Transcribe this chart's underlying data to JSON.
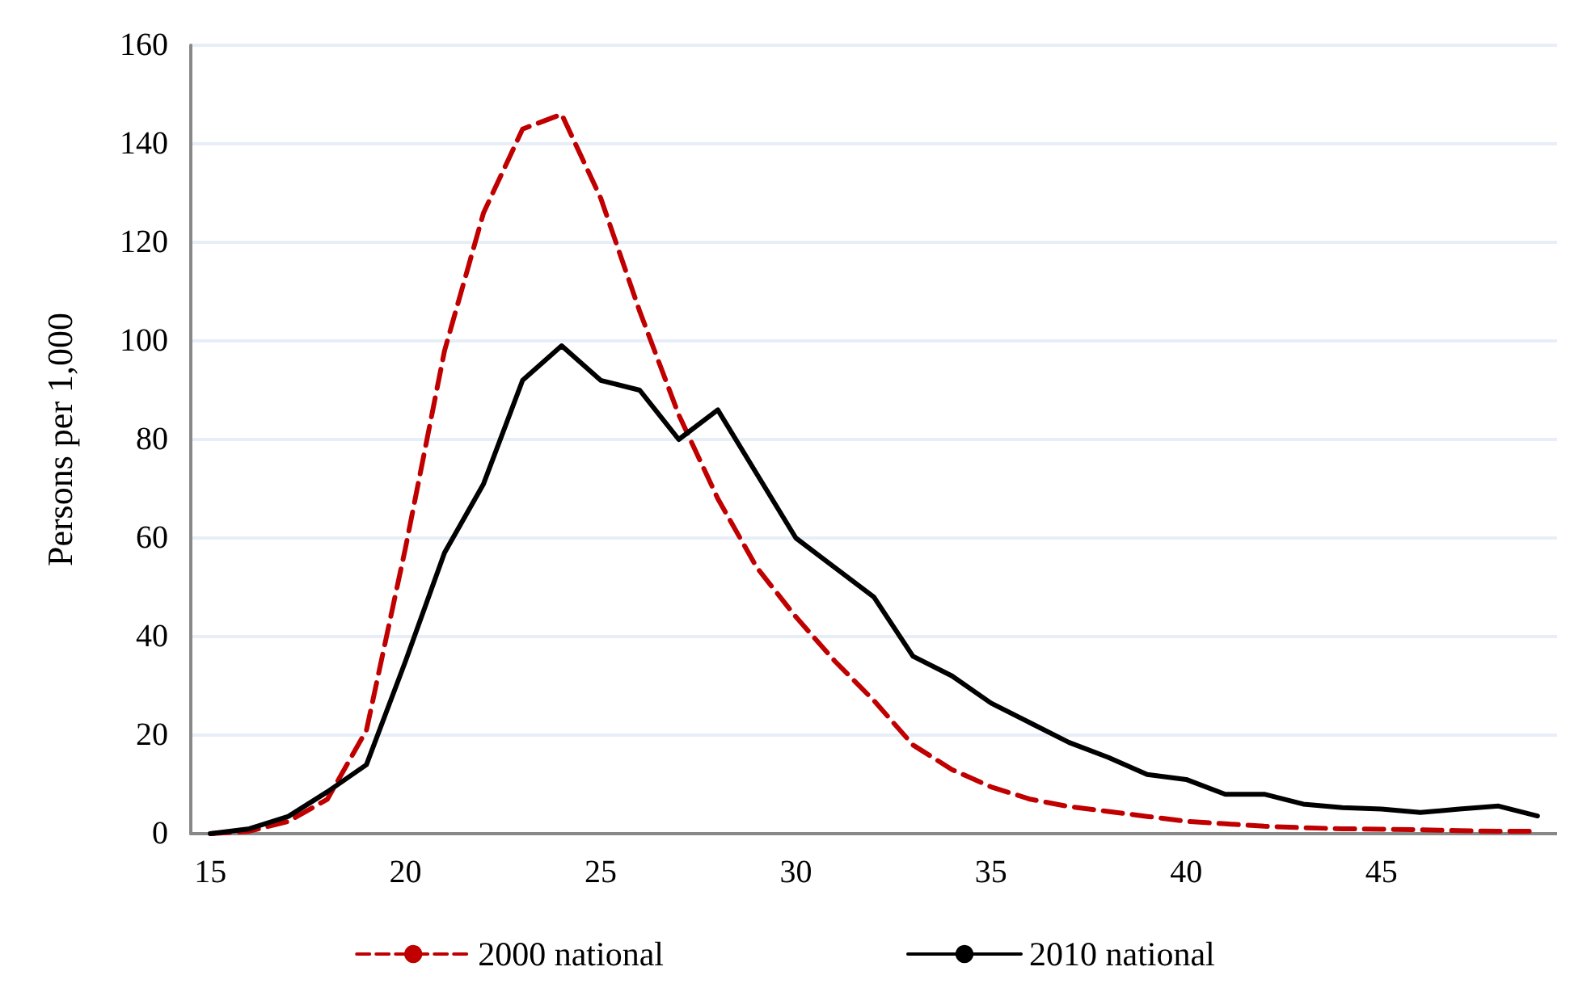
{
  "chart_data": {
    "type": "line",
    "ylabel": "Persons per 1,000",
    "x": [
      15,
      16,
      17,
      18,
      19,
      20,
      21,
      22,
      23,
      24,
      25,
      26,
      27,
      28,
      29,
      30,
      31,
      32,
      33,
      34,
      35,
      36,
      37,
      38,
      39,
      40,
      41,
      42,
      43,
      44,
      45,
      46,
      47,
      48,
      49
    ],
    "series": [
      {
        "name": "2000 national",
        "color": "#c00000",
        "line_style": "dashed",
        "values": [
          0,
          0.5,
          2.5,
          7,
          21,
          58,
          98,
          126,
          143,
          146,
          129,
          106,
          85,
          68,
          54,
          44,
          35,
          27,
          18,
          13,
          9.5,
          7,
          5.5,
          4.5,
          3.5,
          2.5,
          2,
          1.5,
          1.2,
          1,
          0.9,
          0.8,
          0.6,
          0.5,
          0.5
        ]
      },
      {
        "name": "2010 national",
        "color": "#000000",
        "line_style": "solid",
        "values": [
          0,
          1,
          3.5,
          8.5,
          14,
          35,
          57,
          71,
          92,
          99,
          92,
          90,
          80,
          86,
          73,
          60,
          54,
          48,
          36,
          32,
          26.5,
          22.5,
          18.5,
          15.5,
          12,
          11,
          8,
          8,
          6,
          5.3,
          5,
          4.3,
          5,
          5.6,
          3.6
        ]
      }
    ],
    "xlim": [
      14.5,
      49.5
    ],
    "xticks": [
      15,
      20,
      25,
      30,
      35,
      40,
      45
    ],
    "ylim": [
      0,
      160
    ],
    "yticks": [
      0,
      20,
      40,
      60,
      80,
      100,
      120,
      140,
      160
    ],
    "grid": "y",
    "legend": "bottom",
    "marker": "none"
  }
}
